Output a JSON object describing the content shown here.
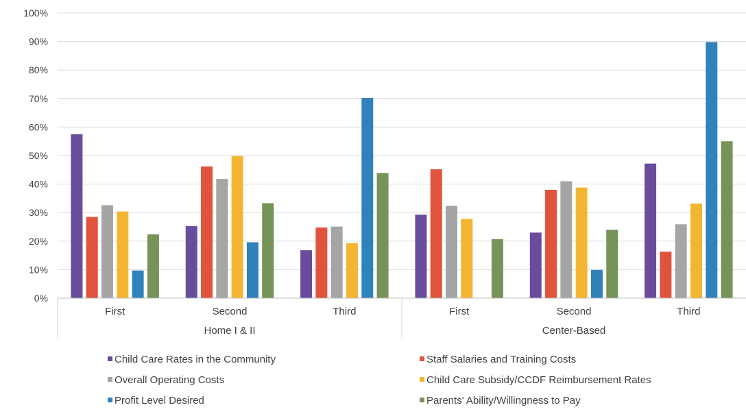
{
  "chart_data": {
    "type": "bar",
    "title": "",
    "xlabel": "",
    "ylabel": "",
    "ylim": [
      0,
      100
    ],
    "yticks": [
      "0%",
      "10%",
      "20%",
      "30%",
      "40%",
      "50%",
      "60%",
      "70%",
      "80%",
      "90%",
      "100%"
    ],
    "grid": true,
    "legend_position": "bottom",
    "groups": [
      {
        "label": "Home I & II",
        "categories": [
          "First",
          "Second",
          "Third"
        ]
      },
      {
        "label": "Center-Based",
        "categories": [
          "First",
          "Second",
          "Third"
        ]
      }
    ],
    "series": [
      {
        "name": "Child Care Rates in the Community",
        "color": "#6a4c9c",
        "values": [
          57.5,
          25.3,
          16.8,
          29.3,
          23.0,
          47.2
        ]
      },
      {
        "name": "Staff Salaries and Training Costs",
        "color": "#e0533d",
        "values": [
          28.5,
          46.2,
          24.8,
          45.2,
          38.0,
          16.3
        ]
      },
      {
        "name": "Overall Operating Costs",
        "color": "#a5a5a5",
        "values": [
          32.6,
          41.8,
          25.1,
          32.4,
          41.0,
          25.9
        ]
      },
      {
        "name": "Child Care Subsidy/CCDF Reimbursement Rates",
        "color": "#f2b632",
        "values": [
          30.4,
          49.9,
          19.3,
          27.8,
          38.8,
          33.2
        ]
      },
      {
        "name": "Profit Level Desired",
        "color": "#2f83ba",
        "values": [
          9.7,
          19.6,
          70.2,
          0,
          9.9,
          89.8
        ]
      },
      {
        "name": "Parents' Ability/Willingness to Pay",
        "color": "#76935a",
        "values": [
          22.4,
          33.3,
          43.9,
          20.7,
          24.0,
          55.0
        ]
      }
    ]
  }
}
